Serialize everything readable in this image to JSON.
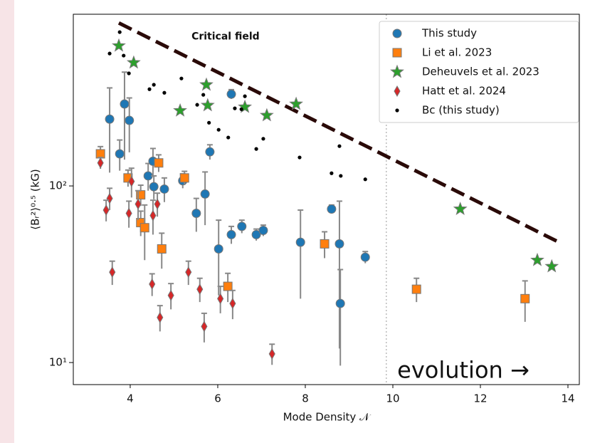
{
  "chart_data": {
    "type": "scatter",
    "xlabel": "Mode Density 𝒩",
    "ylabel": "⟨Bᵣ²⟩⁰·⁵ (kG)",
    "xlim": [
      2.7,
      14.26
    ],
    "ylim": [
      7.5,
      938
    ],
    "log_y": true,
    "xticks": [
      4,
      6,
      8,
      10,
      12,
      14
    ],
    "yticks": [
      {
        "value": 10,
        "label": "10¹"
      },
      {
        "value": 100,
        "label": "10²"
      }
    ],
    "legend": "upper right",
    "annotations": [
      {
        "text": "Critical field",
        "x": 5.4,
        "y": 700
      },
      {
        "text": "evolution →",
        "x": 10.1,
        "y": 8.9
      }
    ],
    "critical_line": {
      "x": [
        3.74,
        13.87
      ],
      "y": [
        837,
        47
      ],
      "color": "#2a0a08"
    },
    "divider_x": 9.85,
    "series": [
      {
        "name": "This study",
        "color": "#1f77b4",
        "marker": "circle",
        "x": [
          3.53,
          3.87,
          3.76,
          3.98,
          4.41,
          4.52,
          4.54,
          4.78,
          5.2,
          5.51,
          5.71,
          5.82,
          6.02,
          6.31,
          6.31,
          6.55,
          6.88,
          7.04,
          7.89,
          8.6,
          8.78,
          8.8,
          9.37
        ],
        "values": [
          239,
          291,
          152,
          235,
          114,
          138,
          99,
          96,
          107,
          70,
          90,
          156,
          44,
          53,
          331,
          59,
          53,
          56,
          48,
          74,
          47,
          21.6,
          39.5
        ],
        "yerr": [
          120,
          150,
          30,
          80,
          20,
          25,
          15,
          15,
          10,
          15,
          30,
          15,
          20,
          6,
          20,
          5,
          4,
          4,
          25,
          4,
          35,
          12,
          3
        ]
      },
      {
        "name": "Li et al. 2023",
        "color": "#ff7f0e",
        "marker": "square",
        "x": [
          3.32,
          3.95,
          4.24,
          4.24,
          4.33,
          4.65,
          4.72,
          5.24,
          6.23,
          8.44,
          10.54,
          13.02
        ],
        "values": [
          152,
          111,
          89,
          62,
          58,
          135,
          44,
          111,
          27,
          47,
          26,
          23
        ],
        "yerr": [
          15,
          12,
          12,
          10,
          20,
          15,
          10,
          10,
          5,
          8,
          4,
          6
        ]
      },
      {
        "name": "Deheuvels et al. 2023",
        "color": "#2ca02c",
        "marker": "star",
        "x": [
          3.74,
          4.08,
          5.14,
          5.74,
          5.77,
          6.62,
          7.12,
          7.79,
          11.54,
          13.3,
          13.63
        ],
        "values": [
          622,
          499,
          267,
          374,
          286,
          280,
          251,
          291,
          74,
          38,
          35
        ]
      },
      {
        "name": "Hatt et al. 2024",
        "color": "#d62728",
        "marker": "diamond",
        "x": [
          3.32,
          3.53,
          3.45,
          3.59,
          3.97,
          4.03,
          4.18,
          4.52,
          4.5,
          4.62,
          4.68,
          4.93,
          5.33,
          5.59,
          5.69,
          6.06,
          6.34,
          7.24
        ],
        "values": [
          135,
          85,
          73,
          32.5,
          70,
          106,
          79,
          68,
          27.8,
          79,
          18,
          24,
          32.5,
          26,
          16,
          23,
          21.6,
          11.2
        ],
        "yerr": [
          10,
          12,
          10,
          5,
          12,
          20,
          15,
          15,
          4,
          12,
          3,
          4,
          5,
          4,
          3,
          4,
          4,
          1.5
        ]
      },
      {
        "name": "Bc (this study)",
        "color": "#000000",
        "marker": "dot",
        "x": [
          3.53,
          3.76,
          3.85,
          3.97,
          4.44,
          4.54,
          4.78,
          5.17,
          5.53,
          5.67,
          5.8,
          6.02,
          6.24,
          6.39,
          6.54,
          6.62,
          6.88,
          7.04,
          7.87,
          8.6,
          8.78,
          8.81,
          9.37
        ],
        "values": [
          562,
          743,
          547,
          434,
          353,
          374,
          337,
          406,
          288,
          328,
          228,
          208,
          188,
          275,
          272,
          322,
          162,
          185,
          145,
          118,
          168,
          114,
          109
        ]
      }
    ]
  }
}
